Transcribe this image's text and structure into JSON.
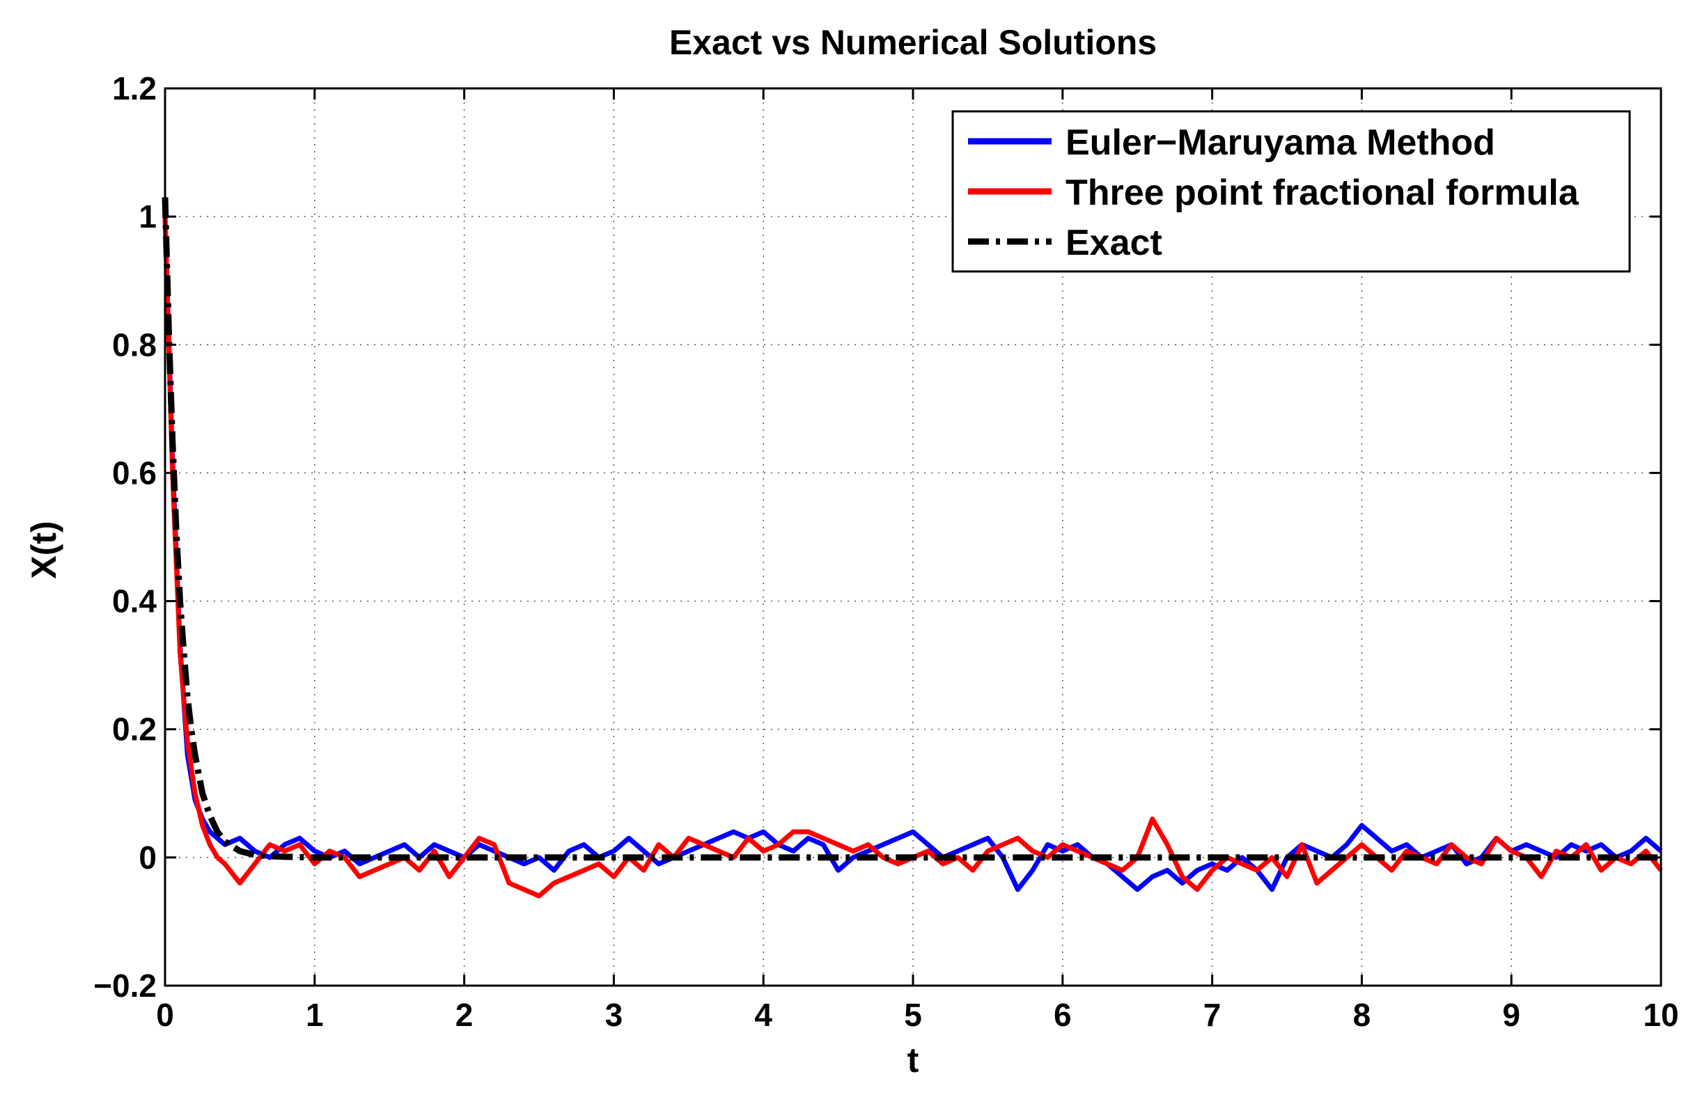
{
  "chart_data": {
    "type": "line",
    "title": "Exact vs Numerical Solutions",
    "xlabel": "t",
    "ylabel": "X(t)",
    "xlim": [
      0,
      10
    ],
    "ylim": [
      -0.2,
      1.2
    ],
    "grid": true,
    "legend_position": "top-right",
    "x_ticks": [
      0,
      1,
      2,
      3,
      4,
      5,
      6,
      7,
      8,
      9,
      10
    ],
    "x_tick_labels": [
      "0",
      "1",
      "2",
      "3",
      "4",
      "5",
      "6",
      "7",
      "8",
      "9",
      "10"
    ],
    "y_ticks": [
      -0.2,
      0,
      0.2,
      0.4,
      0.6,
      0.8,
      1.0,
      1.2
    ],
    "y_tick_labels": [
      "−0.2",
      "0",
      "0.2",
      "0.4",
      "0.6",
      "0.8",
      "1",
      "1.2"
    ],
    "series": [
      {
        "name": "Euler−Maruyama Method",
        "color": "#0000ff",
        "style": "solid",
        "x": [
          0,
          0.05,
          0.1,
          0.15,
          0.2,
          0.25,
          0.3,
          0.35,
          0.4,
          0.5,
          0.6,
          0.7,
          0.8,
          0.9,
          1.0,
          1.1,
          1.2,
          1.3,
          1.4,
          1.5,
          1.6,
          1.7,
          1.8,
          1.9,
          2.0,
          2.1,
          2.2,
          2.3,
          2.4,
          2.5,
          2.6,
          2.7,
          2.8,
          2.9,
          3.0,
          3.1,
          3.2,
          3.3,
          3.4,
          3.5,
          3.6,
          3.7,
          3.8,
          3.9,
          4.0,
          4.1,
          4.2,
          4.3,
          4.4,
          4.5,
          4.6,
          4.7,
          4.8,
          4.9,
          5.0,
          5.1,
          5.2,
          5.3,
          5.4,
          5.5,
          5.6,
          5.7,
          5.8,
          5.9,
          6.0,
          6.1,
          6.2,
          6.3,
          6.4,
          6.5,
          6.6,
          6.7,
          6.8,
          6.9,
          7.0,
          7.1,
          7.2,
          7.3,
          7.4,
          7.5,
          7.6,
          7.7,
          7.8,
          7.9,
          8.0,
          8.1,
          8.2,
          8.3,
          8.4,
          8.5,
          8.6,
          8.7,
          8.8,
          8.9,
          9.0,
          9.1,
          9.2,
          9.3,
          9.4,
          9.5,
          9.6,
          9.7,
          9.8,
          9.9,
          10.0
        ],
        "y": [
          1.0,
          0.62,
          0.33,
          0.16,
          0.09,
          0.06,
          0.04,
          0.03,
          0.02,
          0.03,
          0.01,
          0.0,
          0.02,
          0.03,
          0.01,
          0.0,
          0.01,
          -0.01,
          0.0,
          0.01,
          0.02,
          0.0,
          0.02,
          0.01,
          0.0,
          0.02,
          0.01,
          0.0,
          -0.01,
          0.0,
          -0.02,
          0.01,
          0.02,
          0.0,
          0.01,
          0.03,
          0.01,
          -0.01,
          0.0,
          0.01,
          0.02,
          0.03,
          0.04,
          0.03,
          0.04,
          0.02,
          0.01,
          0.03,
          0.02,
          -0.02,
          0.0,
          0.01,
          0.02,
          0.03,
          0.04,
          0.02,
          0.0,
          0.01,
          0.02,
          0.03,
          0.0,
          -0.05,
          -0.02,
          0.02,
          0.01,
          0.02,
          0.0,
          -0.01,
          -0.03,
          -0.05,
          -0.03,
          -0.02,
          -0.04,
          -0.02,
          -0.01,
          -0.02,
          0.0,
          -0.02,
          -0.05,
          0.0,
          0.02,
          0.01,
          0.0,
          0.02,
          0.05,
          0.03,
          0.01,
          0.02,
          0.0,
          0.01,
          0.02,
          -0.01,
          0.0,
          0.03,
          0.01,
          0.02,
          0.01,
          0.0,
          0.02,
          0.01,
          0.02,
          0.0,
          0.01,
          0.03,
          0.01
        ]
      },
      {
        "name": "Three point fractional formula",
        "color": "#ff0000",
        "style": "solid",
        "x": [
          0,
          0.05,
          0.1,
          0.15,
          0.2,
          0.25,
          0.3,
          0.35,
          0.4,
          0.5,
          0.6,
          0.7,
          0.8,
          0.9,
          1.0,
          1.1,
          1.2,
          1.3,
          1.4,
          1.5,
          1.6,
          1.7,
          1.8,
          1.9,
          2.0,
          2.1,
          2.2,
          2.3,
          2.4,
          2.5,
          2.6,
          2.7,
          2.8,
          2.9,
          3.0,
          3.1,
          3.2,
          3.3,
          3.4,
          3.5,
          3.6,
          3.7,
          3.8,
          3.9,
          4.0,
          4.1,
          4.2,
          4.3,
          4.4,
          4.5,
          4.6,
          4.7,
          4.8,
          4.9,
          5.0,
          5.1,
          5.2,
          5.3,
          5.4,
          5.5,
          5.6,
          5.7,
          5.8,
          5.9,
          6.0,
          6.1,
          6.2,
          6.3,
          6.4,
          6.5,
          6.6,
          6.7,
          6.8,
          6.9,
          7.0,
          7.1,
          7.2,
          7.3,
          7.4,
          7.5,
          7.6,
          7.7,
          7.8,
          7.9,
          8.0,
          8.1,
          8.2,
          8.3,
          8.4,
          8.5,
          8.6,
          8.7,
          8.8,
          8.9,
          9.0,
          9.1,
          9.2,
          9.3,
          9.4,
          9.5,
          9.6,
          9.7,
          9.8,
          9.9,
          10.0
        ],
        "y": [
          1.0,
          0.6,
          0.32,
          0.18,
          0.1,
          0.05,
          0.02,
          0.0,
          -0.01,
          -0.04,
          -0.01,
          0.02,
          0.01,
          0.02,
          -0.01,
          0.01,
          0.0,
          -0.03,
          -0.02,
          -0.01,
          0.0,
          -0.02,
          0.01,
          -0.03,
          0.0,
          0.03,
          0.02,
          -0.04,
          -0.05,
          -0.06,
          -0.04,
          -0.03,
          -0.02,
          -0.01,
          -0.03,
          0.0,
          -0.02,
          0.02,
          0.0,
          0.03,
          0.02,
          0.01,
          0.0,
          0.03,
          0.01,
          0.02,
          0.04,
          0.04,
          0.03,
          0.02,
          0.01,
          0.02,
          0.0,
          -0.01,
          0.0,
          0.01,
          -0.01,
          0.0,
          -0.02,
          0.01,
          0.02,
          0.03,
          0.01,
          0.0,
          0.02,
          0.01,
          0.0,
          -0.01,
          -0.02,
          0.0,
          0.06,
          0.02,
          -0.03,
          -0.05,
          -0.02,
          0.0,
          -0.01,
          -0.02,
          0.0,
          -0.03,
          0.02,
          -0.04,
          -0.02,
          0.0,
          0.02,
          0.0,
          -0.02,
          0.01,
          0.0,
          -0.01,
          0.02,
          0.0,
          -0.01,
          0.03,
          0.01,
          0.0,
          -0.03,
          0.01,
          0.0,
          0.02,
          -0.02,
          0.0,
          -0.01,
          0.01,
          -0.02
        ]
      },
      {
        "name": "Exact",
        "color": "#000000",
        "style": "dashdot",
        "x": [
          0,
          0.025,
          0.05,
          0.075,
          0.1,
          0.125,
          0.15,
          0.175,
          0.2,
          0.25,
          0.3,
          0.35,
          0.4,
          0.5,
          0.6,
          0.7,
          0.8,
          1.0,
          2.0,
          3.0,
          4.0,
          5.0,
          6.0,
          7.0,
          8.0,
          9.0,
          10.0
        ],
        "y": [
          1.03,
          0.82,
          0.65,
          0.51,
          0.4,
          0.32,
          0.25,
          0.2,
          0.16,
          0.1,
          0.065,
          0.04,
          0.025,
          0.01,
          0.004,
          0.002,
          0.001,
          0.0,
          0.0,
          0.0,
          0.0,
          0.0,
          0.0,
          0.0,
          0.0,
          0.0,
          0.0
        ]
      }
    ]
  }
}
